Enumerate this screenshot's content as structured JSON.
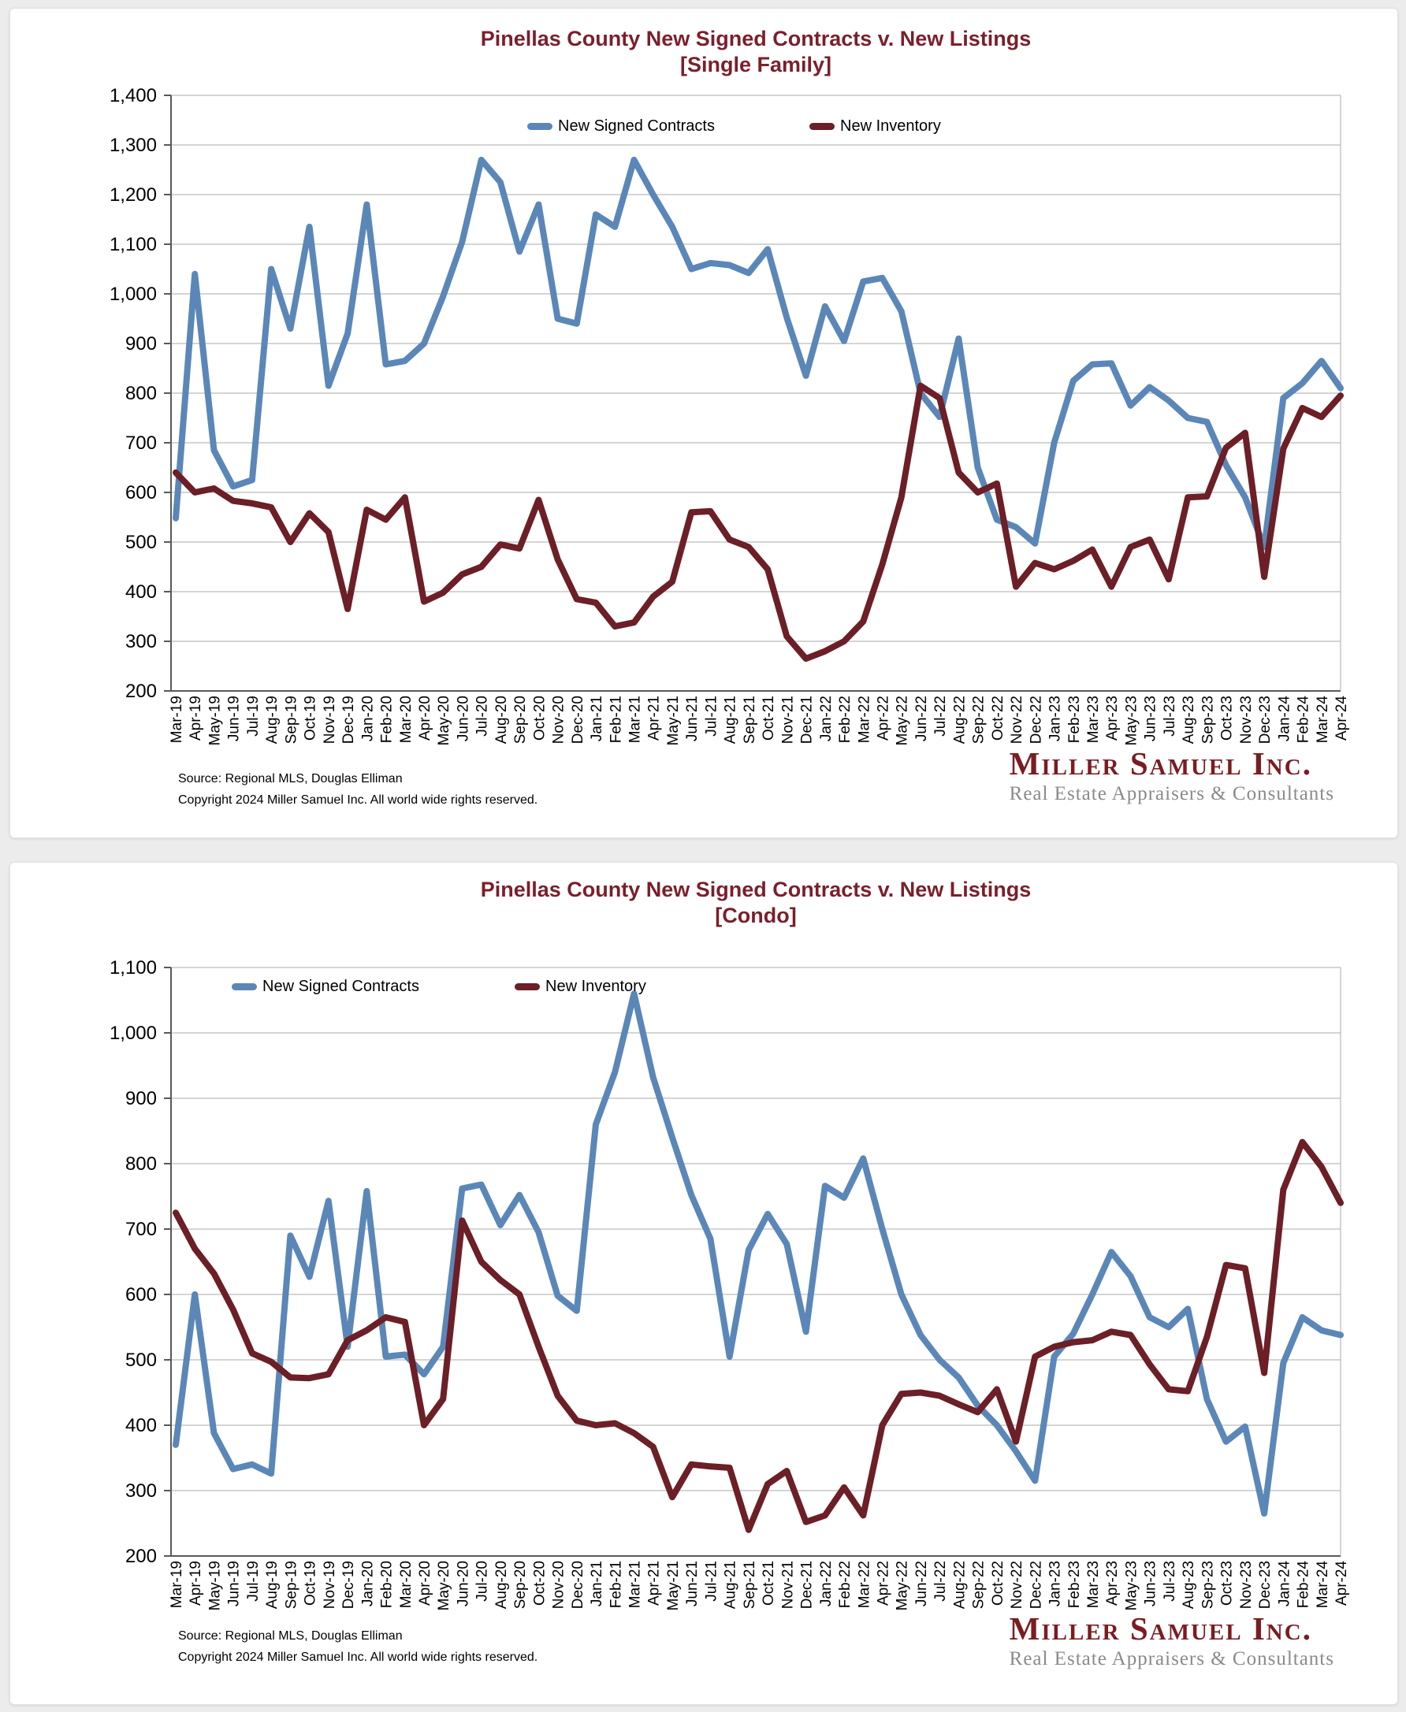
{
  "footer": {
    "source": "Source: Regional MLS, Douglas Elliman",
    "copyright": "Copyright 2024 Miller Samuel Inc.  All world wide rights reserved."
  },
  "logo": {
    "name": "Miller Samuel Inc.",
    "tagline": "Real Estate Appraisers & Consultants"
  },
  "colors": {
    "contracts_blue": "#5B87B8",
    "inventory_maroon": "#6C1F26",
    "title_maroon": "#7B1F2B",
    "gridline_gray": "#ABABAB",
    "axis_gray": "#595959"
  },
  "chart_data": [
    {
      "type": "line",
      "title": "Pinellas County New Signed Contracts v. New Listings",
      "subtitle": "[Single Family]",
      "xlabel": "",
      "ylabel": "",
      "ylim": [
        200,
        1400
      ],
      "ytick_step": 100,
      "grid": true,
      "legend_position": "top-inside",
      "x": [
        "Mar-19",
        "Apr-19",
        "May-19",
        "Jun-19",
        "Jul-19",
        "Aug-19",
        "Sep-19",
        "Oct-19",
        "Nov-19",
        "Dec-19",
        "Jan-20",
        "Feb-20",
        "Mar-20",
        "Apr-20",
        "May-20",
        "Jun-20",
        "Jul-20",
        "Aug-20",
        "Sep-20",
        "Oct-20",
        "Nov-20",
        "Dec-20",
        "Jan-21",
        "Feb-21",
        "Mar-21",
        "Apr-21",
        "May-21",
        "Jun-21",
        "Jul-21",
        "Aug-21",
        "Sep-21",
        "Oct-21",
        "Nov-21",
        "Dec-21",
        "Jan-22",
        "Feb-22",
        "Mar-22",
        "Apr-22",
        "May-22",
        "Jun-22",
        "Jul-22",
        "Aug-22",
        "Sep-22",
        "Oct-22",
        "Nov-22",
        "Dec-22",
        "Jan-23",
        "Feb-23",
        "Mar-23",
        "Apr-23",
        "May-23",
        "Jun-23",
        "Jul-23",
        "Aug-23",
        "Sep-23",
        "Oct-23",
        "Nov-23",
        "Dec-23",
        "Jan-24",
        "Feb-24",
        "Mar-24",
        "Apr-24"
      ],
      "series": [
        {
          "name": "New Signed Contracts",
          "color": "#5B87B8",
          "values": [
            548,
            1040,
            685,
            612,
            625,
            1050,
            930,
            1135,
            815,
            920,
            1180,
            858,
            865,
            900,
            995,
            1105,
            1270,
            1225,
            1085,
            1180,
            950,
            940,
            1160,
            1135,
            1270,
            1200,
            1135,
            1050,
            1062,
            1058,
            1042,
            1090,
            952,
            835,
            975,
            905,
            1025,
            1032,
            965,
            800,
            752,
            910,
            650,
            545,
            530,
            497,
            700,
            825,
            858,
            860,
            775,
            812,
            785,
            750,
            742,
            655,
            590,
            490,
            790,
            820,
            865,
            810
          ]
        },
        {
          "name": "New Inventory",
          "color": "#6C1F26",
          "values": [
            640,
            600,
            608,
            583,
            578,
            570,
            500,
            558,
            520,
            365,
            565,
            545,
            590,
            380,
            398,
            435,
            450,
            495,
            487,
            585,
            465,
            385,
            378,
            330,
            338,
            390,
            420,
            560,
            562,
            505,
            490,
            445,
            310,
            265,
            280,
            300,
            340,
            455,
            590,
            815,
            790,
            640,
            600,
            618,
            410,
            458,
            445,
            462,
            485,
            410,
            490,
            505,
            425,
            590,
            592,
            690,
            720,
            430,
            688,
            770,
            752,
            795
          ]
        }
      ]
    },
    {
      "type": "line",
      "title": "Pinellas County New Signed Contracts v. New Listings",
      "subtitle": "[Condo]",
      "xlabel": "",
      "ylabel": "",
      "ylim": [
        200,
        1100
      ],
      "ytick_step": 100,
      "grid": true,
      "legend_position": "top-inside",
      "x": [
        "Mar-19",
        "Apr-19",
        "May-19",
        "Jun-19",
        "Jul-19",
        "Aug-19",
        "Sep-19",
        "Oct-19",
        "Nov-19",
        "Dec-19",
        "Jan-20",
        "Feb-20",
        "Mar-20",
        "Apr-20",
        "May-20",
        "Jun-20",
        "Jul-20",
        "Aug-20",
        "Sep-20",
        "Oct-20",
        "Nov-20",
        "Dec-20",
        "Jan-21",
        "Feb-21",
        "Mar-21",
        "Apr-21",
        "May-21",
        "Jun-21",
        "Jul-21",
        "Aug-21",
        "Sep-21",
        "Oct-21",
        "Nov-21",
        "Dec-21",
        "Jan-22",
        "Feb-22",
        "Mar-22",
        "Apr-22",
        "May-22",
        "Jun-22",
        "Jul-22",
        "Aug-22",
        "Sep-22",
        "Oct-22",
        "Nov-22",
        "Dec-22",
        "Jan-23",
        "Feb-23",
        "Mar-23",
        "Apr-23",
        "May-23",
        "Jun-23",
        "Jul-23",
        "Aug-23",
        "Sep-23",
        "Oct-23",
        "Nov-23",
        "Dec-23",
        "Jan-24",
        "Feb-24",
        "Mar-24",
        "Apr-24"
      ],
      "series": [
        {
          "name": "New Signed Contracts",
          "color": "#5B87B8",
          "values": [
            370,
            600,
            388,
            333,
            340,
            326,
            690,
            627,
            743,
            520,
            758,
            505,
            508,
            478,
            520,
            762,
            768,
            706,
            752,
            695,
            598,
            575,
            860,
            940,
            1060,
            932,
            840,
            752,
            685,
            505,
            668,
            723,
            677,
            543,
            766,
            748,
            808,
            700,
            600,
            538,
            500,
            473,
            430,
            400,
            360,
            315,
            505,
            540,
            600,
            665,
            628,
            565,
            550,
            578,
            440,
            375,
            398,
            265,
            495,
            565,
            545,
            538
          ]
        },
        {
          "name": "New Inventory",
          "color": "#6C1F26",
          "values": [
            725,
            670,
            632,
            577,
            510,
            497,
            473,
            472,
            478,
            530,
            545,
            565,
            558,
            400,
            440,
            713,
            650,
            622,
            600,
            520,
            445,
            407,
            400,
            403,
            388,
            367,
            290,
            340,
            337,
            335,
            240,
            310,
            330,
            252,
            262,
            305,
            262,
            400,
            448,
            450,
            445,
            432,
            420,
            455,
            375,
            505,
            520,
            527,
            530,
            543,
            538,
            493,
            455,
            452,
            535,
            645,
            640,
            480,
            760,
            833,
            795,
            740
          ]
        }
      ]
    }
  ]
}
